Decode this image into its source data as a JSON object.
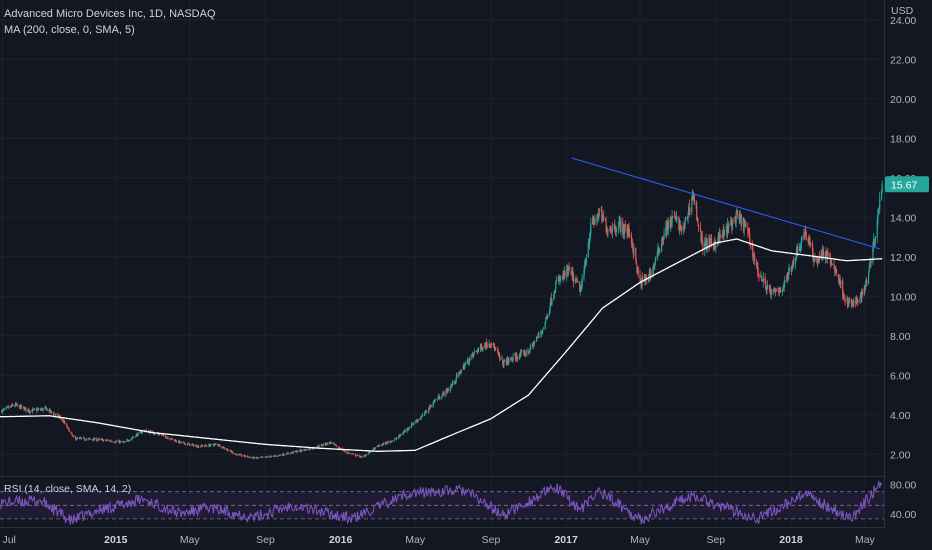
{
  "header": {
    "title": "Advanced Micro Devices Inc, 1D, NASDAQ",
    "ma_label": "MA (200, close, 0, SMA, 5)",
    "rsi_label": "RSI (14, close, SMA, 14, 2)"
  },
  "currency": "USD",
  "last_price_label": "15.67",
  "colors": {
    "background": "#131722",
    "up": "#26a69a",
    "down": "#ef5350",
    "ma": "#ffffff",
    "trendline": "#2962ff",
    "rsi": "#7e57c2",
    "rsi_band": "#1e1b33",
    "price_tag": "#26a69a"
  },
  "chart_data": [
    {
      "type": "candlestick",
      "title": "Advanced Micro Devices Inc, 1D, NASDAQ",
      "ylabel": "USD",
      "ylim": [
        0.9,
        25
      ],
      "yticks": [
        "2.00",
        "4.00",
        "6.00",
        "8.00",
        "10.00",
        "12.00",
        "14.00",
        "16.00",
        "18.00",
        "20.00",
        "22.00",
        "24.00"
      ],
      "ytick_values": [
        2,
        4,
        6,
        8,
        10,
        12,
        14,
        16,
        18,
        20,
        22,
        24
      ],
      "xticks": [
        "Jul",
        "2015",
        "May",
        "Sep",
        "2016",
        "May",
        "Sep",
        "2017",
        "May",
        "Sep",
        "2018",
        "May"
      ],
      "xtick_bold": [
        false,
        true,
        false,
        false,
        true,
        false,
        false,
        true,
        false,
        false,
        true,
        false
      ],
      "xtick_dates": [
        "2014-07-01",
        "2015-01-01",
        "2015-05-01",
        "2015-09-01",
        "2016-01-01",
        "2016-05-01",
        "2016-09-01",
        "2017-01-01",
        "2017-05-01",
        "2017-09-01",
        "2018-01-01",
        "2018-05-01"
      ],
      "x_range": [
        "2014-06-27",
        "2018-06-01"
      ],
      "close_anchors": [
        [
          "2014-07-01",
          4.2
        ],
        [
          "2014-07-20",
          4.5
        ],
        [
          "2014-08-15",
          4.2
        ],
        [
          "2014-09-10",
          4.3
        ],
        [
          "2014-10-05",
          3.8
        ],
        [
          "2014-10-25",
          2.8
        ],
        [
          "2014-12-01",
          2.75
        ],
        [
          "2015-01-15",
          2.6
        ],
        [
          "2015-02-15",
          3.2
        ],
        [
          "2015-03-15",
          3.0
        ],
        [
          "2015-04-15",
          2.6
        ],
        [
          "2015-05-15",
          2.4
        ],
        [
          "2015-06-15",
          2.5
        ],
        [
          "2015-07-15",
          2.0
        ],
        [
          "2015-08-15",
          1.8
        ],
        [
          "2015-09-15",
          1.9
        ],
        [
          "2015-10-15",
          2.1
        ],
        [
          "2015-11-15",
          2.3
        ],
        [
          "2015-12-15",
          2.6
        ],
        [
          "2016-01-10",
          2.1
        ],
        [
          "2016-02-05",
          1.85
        ],
        [
          "2016-03-01",
          2.4
        ],
        [
          "2016-04-01",
          2.8
        ],
        [
          "2016-04-25",
          3.5
        ],
        [
          "2016-05-15",
          4.0
        ],
        [
          "2016-06-01",
          4.7
        ],
        [
          "2016-06-25",
          5.3
        ],
        [
          "2016-07-20",
          6.5
        ],
        [
          "2016-08-10",
          7.3
        ],
        [
          "2016-09-01",
          7.7
        ],
        [
          "2016-09-20",
          6.6
        ],
        [
          "2016-10-10",
          6.9
        ],
        [
          "2016-11-01",
          7.2
        ],
        [
          "2016-11-25",
          8.4
        ],
        [
          "2016-12-15",
          10.6
        ],
        [
          "2017-01-05",
          11.3
        ],
        [
          "2017-01-25",
          10.3
        ],
        [
          "2017-02-10",
          13.5
        ],
        [
          "2017-02-24",
          14.2
        ],
        [
          "2017-03-10",
          13.4
        ],
        [
          "2017-03-28",
          13.6
        ],
        [
          "2017-04-15",
          13.2
        ],
        [
          "2017-05-01",
          10.6
        ],
        [
          "2017-05-20",
          11.2
        ],
        [
          "2017-06-10",
          13.3
        ],
        [
          "2017-06-25",
          14.0
        ],
        [
          "2017-07-10",
          13.3
        ],
        [
          "2017-07-26",
          15.2
        ],
        [
          "2017-08-10",
          12.6
        ],
        [
          "2017-08-30",
          12.7
        ],
        [
          "2017-09-15",
          13.2
        ],
        [
          "2017-10-05",
          14.0
        ],
        [
          "2017-10-20",
          13.5
        ],
        [
          "2017-11-10",
          11.1
        ],
        [
          "2017-12-01",
          10.1
        ],
        [
          "2017-12-20",
          10.5
        ],
        [
          "2018-01-10",
          12.2
        ],
        [
          "2018-01-24",
          13.3
        ],
        [
          "2018-02-08",
          11.8
        ],
        [
          "2018-02-25",
          12.2
        ],
        [
          "2018-03-15",
          11.3
        ],
        [
          "2018-04-01",
          9.7
        ],
        [
          "2018-04-15",
          9.6
        ],
        [
          "2018-05-01",
          10.4
        ],
        [
          "2018-05-15",
          12.6
        ],
        [
          "2018-05-29",
          15.67
        ]
      ],
      "ma_anchors": [
        [
          "2014-06-27",
          3.9
        ],
        [
          "2014-09-15",
          3.95
        ],
        [
          "2014-12-01",
          3.6
        ],
        [
          "2015-03-01",
          3.1
        ],
        [
          "2015-06-01",
          2.8
        ],
        [
          "2015-09-01",
          2.5
        ],
        [
          "2015-12-01",
          2.3
        ],
        [
          "2016-03-01",
          2.15
        ],
        [
          "2016-05-01",
          2.2
        ],
        [
          "2016-07-01",
          3.0
        ],
        [
          "2016-09-01",
          3.8
        ],
        [
          "2016-11-01",
          5.0
        ],
        [
          "2017-01-01",
          7.2
        ],
        [
          "2017-03-01",
          9.4
        ],
        [
          "2017-05-01",
          10.7
        ],
        [
          "2017-07-01",
          11.7
        ],
        [
          "2017-09-01",
          12.7
        ],
        [
          "2017-10-05",
          12.9
        ],
        [
          "2017-12-01",
          12.3
        ],
        [
          "2018-02-01",
          12.05
        ],
        [
          "2018-04-01",
          11.8
        ],
        [
          "2018-05-29",
          11.9
        ]
      ],
      "trendline": {
        "start": [
          "2017-01-10",
          17.0
        ],
        "end": [
          "2018-05-25",
          12.4
        ]
      },
      "last_price": 15.67
    },
    {
      "type": "line",
      "title": "RSI (14, close, SMA, 14, 2)",
      "ylim": [
        22,
        90
      ],
      "band": [
        33,
        70
      ],
      "yticks": [
        "40.00",
        "80.00"
      ],
      "ytick_values": [
        40,
        80
      ],
      "rsi_anchors": [
        [
          "2014-06-27",
          55
        ],
        [
          "2014-09-01",
          58
        ],
        [
          "2014-10-20",
          30
        ],
        [
          "2014-12-01",
          44
        ],
        [
          "2015-02-15",
          60
        ],
        [
          "2015-04-15",
          40
        ],
        [
          "2015-06-01",
          48
        ],
        [
          "2015-08-15",
          35
        ],
        [
          "2015-10-15",
          52
        ],
        [
          "2016-01-20",
          33
        ],
        [
          "2016-04-20",
          68
        ],
        [
          "2016-07-20",
          72
        ],
        [
          "2016-09-20",
          38
        ],
        [
          "2016-12-15",
          76
        ],
        [
          "2017-01-25",
          45
        ],
        [
          "2017-02-24",
          72
        ],
        [
          "2017-05-01",
          32
        ],
        [
          "2017-07-26",
          66
        ],
        [
          "2017-09-15",
          48
        ],
        [
          "2017-11-10",
          34
        ],
        [
          "2018-01-24",
          66
        ],
        [
          "2018-04-10",
          33
        ],
        [
          "2018-05-29",
          85
        ]
      ]
    }
  ]
}
